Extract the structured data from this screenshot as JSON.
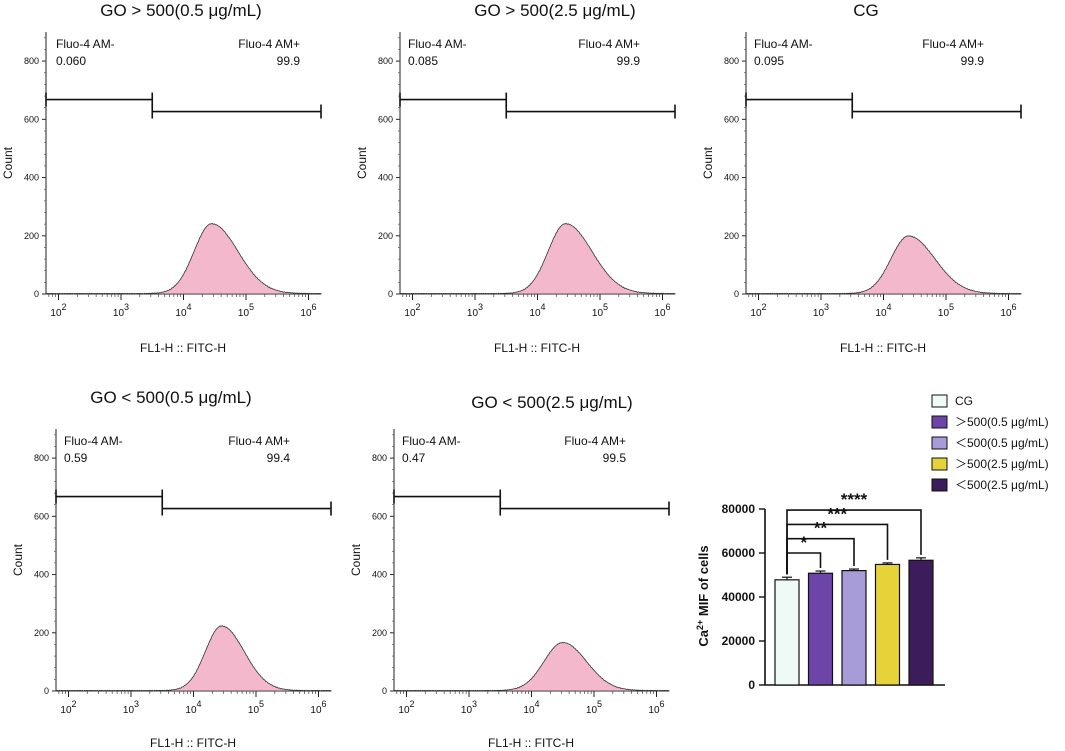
{
  "chart_data": [
    {
      "type": "histogram",
      "title": "GO > 500(0.5 μg/mL)",
      "xlabel": "FL1-H :: FITC-H",
      "ylabel": "Count",
      "x_scale": "log",
      "xlim_log10": [
        1.8,
        6.2
      ],
      "ylim": [
        0,
        900
      ],
      "yticks": [
        "0",
        "200",
        "400",
        "600",
        "800"
      ],
      "xtick_exps": [
        "2",
        "3",
        "4",
        "5",
        "6"
      ],
      "gate_neg": {
        "label": "Fluo-4 AM-",
        "value": "0.060"
      },
      "gate_pos": {
        "label": "Fluo-4 AM+",
        "value": "99.9"
      },
      "gate_level": 668,
      "gate_split_log10": 3.5,
      "peak_log10": 4.45,
      "peak_count": 240,
      "sigma_left": 0.28,
      "sigma_right": 0.42,
      "fill_color": "#f3b8cc",
      "line_color": "#333333"
    },
    {
      "type": "histogram",
      "title": "GO > 500(2.5 μg/mL)",
      "xlabel": "FL1-H :: FITC-H",
      "ylabel": "Count",
      "x_scale": "log",
      "xlim_log10": [
        1.8,
        6.2
      ],
      "ylim": [
        0,
        900
      ],
      "yticks": [
        "0",
        "200",
        "400",
        "600",
        "800"
      ],
      "xtick_exps": [
        "2",
        "3",
        "4",
        "5",
        "6"
      ],
      "gate_neg": {
        "label": "Fluo-4 AM-",
        "value": "0.085"
      },
      "gate_pos": {
        "label": "Fluo-4 AM+",
        "value": "99.9"
      },
      "gate_level": 668,
      "gate_split_log10": 3.5,
      "peak_log10": 4.45,
      "peak_count": 240,
      "sigma_left": 0.28,
      "sigma_right": 0.42,
      "fill_color": "#f3b8cc",
      "line_color": "#333333"
    },
    {
      "type": "histogram",
      "title": "CG",
      "xlabel": "FL1-H :: FITC-H",
      "ylabel": "Count",
      "x_scale": "log",
      "xlim_log10": [
        1.8,
        6.2
      ],
      "ylim": [
        0,
        900
      ],
      "yticks": [
        "0",
        "200",
        "400",
        "600",
        "800"
      ],
      "xtick_exps": [
        "2",
        "3",
        "4",
        "5",
        "6"
      ],
      "gate_neg": {
        "label": "Fluo-4 AM-",
        "value": "0.095"
      },
      "gate_pos": {
        "label": "Fluo-4 AM+",
        "value": "99.9"
      },
      "gate_level": 668,
      "gate_split_log10": 3.5,
      "peak_log10": 4.4,
      "peak_count": 198,
      "sigma_left": 0.28,
      "sigma_right": 0.42,
      "fill_color": "#f3b8cc",
      "line_color": "#333333"
    },
    {
      "type": "histogram",
      "title": "GO < 500(0.5 μg/mL)",
      "xlabel": "FL1-H :: FITC-H",
      "ylabel": "Count",
      "x_scale": "log",
      "xlim_log10": [
        1.8,
        6.2
      ],
      "ylim": [
        0,
        900
      ],
      "yticks": [
        "0",
        "200",
        "400",
        "600",
        "800"
      ],
      "xtick_exps": [
        "2",
        "3",
        "4",
        "5",
        "6"
      ],
      "gate_neg": {
        "label": "Fluo-4 AM-",
        "value": "0.59"
      },
      "gate_pos": {
        "label": "Fluo-4 AM+",
        "value": "99.4"
      },
      "gate_level": 668,
      "gate_split_log10": 3.5,
      "peak_log10": 4.45,
      "peak_count": 222,
      "sigma_left": 0.26,
      "sigma_right": 0.36,
      "fill_color": "#f3b8cc",
      "line_color": "#333333"
    },
    {
      "type": "histogram",
      "title": "GO < 500(2.5 μg/mL)",
      "xlabel": "FL1-H :: FITC-H",
      "ylabel": "Count",
      "x_scale": "log",
      "xlim_log10": [
        1.8,
        6.2
      ],
      "ylim": [
        0,
        900
      ],
      "yticks": [
        "0",
        "200",
        "400",
        "600",
        "800"
      ],
      "xtick_exps": [
        "2",
        "3",
        "4",
        "5",
        "6"
      ],
      "gate_neg": {
        "label": "Fluo-4 AM-",
        "value": "0.47"
      },
      "gate_pos": {
        "label": "Fluo-4 AM+",
        "value": "99.5"
      },
      "gate_level": 668,
      "gate_split_log10": 3.5,
      "peak_log10": 4.5,
      "peak_count": 165,
      "sigma_left": 0.3,
      "sigma_right": 0.38,
      "fill_color": "#f3b8cc",
      "line_color": "#333333"
    },
    {
      "type": "bar",
      "ylabel_main": "Ca",
      "ylabel_sup": "2+",
      "ylabel_rest": " MIF of cells",
      "ylim": [
        0,
        80000
      ],
      "yticks": [
        "0",
        "20000",
        "40000",
        "60000",
        "80000"
      ],
      "categories": [
        "CG",
        "＞500(0.5 μg/mL)",
        "＜500(0.5 μg/mL)",
        "＞500(2.5 μg/mL)",
        "＜500(2.5 μg/mL)"
      ],
      "values": [
        47800,
        50800,
        52000,
        54800,
        56700
      ],
      "errors": [
        1200,
        1000,
        700,
        700,
        1100
      ],
      "colors": [
        "#effaf6",
        "#6d44a8",
        "#a79bd8",
        "#e6d33a",
        "#3c1c5a"
      ],
      "significance": [
        {
          "from": 0,
          "to": 1,
          "label": "*",
          "level": 60000
        },
        {
          "from": 0,
          "to": 2,
          "label": "**",
          "level": 66500
        },
        {
          "from": 0,
          "to": 3,
          "label": "***",
          "level": 73000
        },
        {
          "from": 0,
          "to": 4,
          "label": "****",
          "level": 79500
        }
      ],
      "legend_position": "top-right"
    }
  ]
}
